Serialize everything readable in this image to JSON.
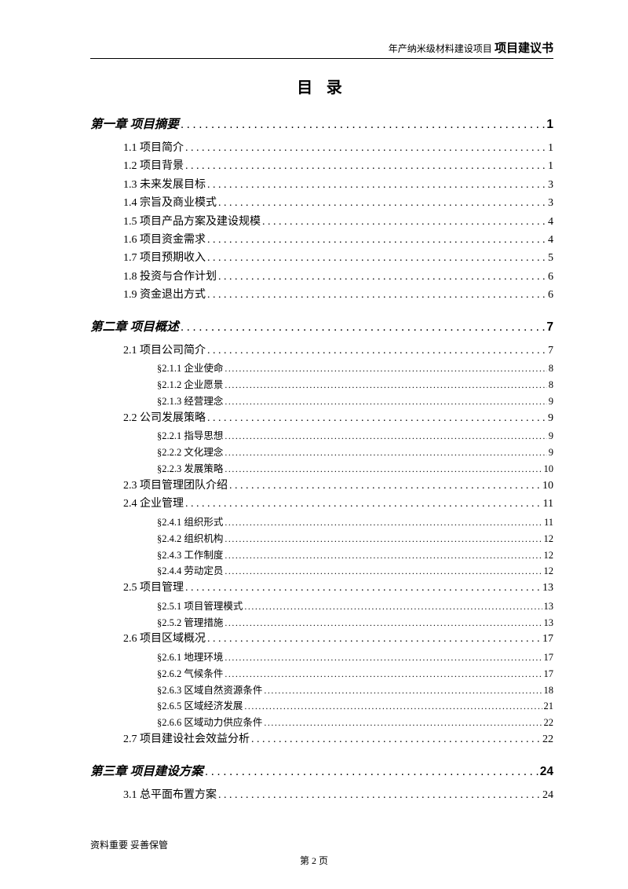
{
  "header": {
    "small": "年产纳米级材料建设项目",
    "bold": "项目建议书"
  },
  "title": "目 录",
  "entries": [
    {
      "level": 1,
      "label": "第一章 项目摘要",
      "page": "1"
    },
    {
      "level": 2,
      "label": "1.1 项目简介",
      "page": "1"
    },
    {
      "level": 2,
      "label": "1.2 项目背景",
      "page": "1"
    },
    {
      "level": 2,
      "label": "1.3 未来发展目标",
      "page": "3"
    },
    {
      "level": 2,
      "label": "1.4 宗旨及商业模式",
      "page": "3"
    },
    {
      "level": 2,
      "label": "1.5 项目产品方案及建设规模",
      "page": "4"
    },
    {
      "level": 2,
      "label": "1.6 项目资金需求",
      "page": "4"
    },
    {
      "level": 2,
      "label": "1.7 项目预期收入",
      "page": "5"
    },
    {
      "level": 2,
      "label": "1.8 投资与合作计划",
      "page": "6"
    },
    {
      "level": 2,
      "label": "1.9 资金退出方式",
      "page": "6"
    },
    {
      "level": 1,
      "label": "第二章 项目概述",
      "page": "7"
    },
    {
      "level": 2,
      "label": "2.1 项目公司简介",
      "page": "7"
    },
    {
      "level": 3,
      "label": "§2.1.1 企业使命",
      "page": "8"
    },
    {
      "level": 3,
      "label": "§2.1.2 企业愿景",
      "page": "8"
    },
    {
      "level": 3,
      "label": "§2.1.3 经营理念",
      "page": "9"
    },
    {
      "level": 2,
      "label": "2.2 公司发展策略",
      "page": "9"
    },
    {
      "level": 3,
      "label": "§2.2.1 指导思想",
      "page": "9"
    },
    {
      "level": 3,
      "label": "§2.2.2 文化理念",
      "page": "9"
    },
    {
      "level": 3,
      "label": "§2.2.3 发展策略",
      "page": "10"
    },
    {
      "level": 2,
      "label": "2.3 项目管理团队介绍",
      "page": "10"
    },
    {
      "level": 2,
      "label": "2.4 企业管理",
      "page": "11"
    },
    {
      "level": 3,
      "label": "§2.4.1 组织形式",
      "page": "11"
    },
    {
      "level": 3,
      "label": "§2.4.2 组织机构",
      "page": "12"
    },
    {
      "level": 3,
      "label": "§2.4.3 工作制度",
      "page": "12"
    },
    {
      "level": 3,
      "label": "§2.4.4 劳动定员",
      "page": "12"
    },
    {
      "level": 2,
      "label": "2.5 项目管理",
      "page": "13"
    },
    {
      "level": 3,
      "label": "§2.5.1 项目管理模式",
      "page": "13"
    },
    {
      "level": 3,
      "label": "§2.5.2 管理措施",
      "page": "13"
    },
    {
      "level": 2,
      "label": "2.6 项目区域概况",
      "page": "17"
    },
    {
      "level": 3,
      "label": "§2.6.1 地理环境",
      "page": "17"
    },
    {
      "level": 3,
      "label": "§2.6.2 气候条件",
      "page": "17"
    },
    {
      "level": 3,
      "label": "§2.6.3 区域自然资源条件",
      "page": "18"
    },
    {
      "level": 3,
      "label": "§2.6.5 区域经济发展",
      "page": "21"
    },
    {
      "level": 3,
      "label": "§2.6.6 区域动力供应条件",
      "page": "22"
    },
    {
      "level": 2,
      "label": "2.7 项目建设社会效益分析",
      "page": "22"
    },
    {
      "level": 1,
      "label": "第三章 项目建设方案",
      "page": "24"
    },
    {
      "level": 2,
      "label": "3.1 总平面布置方案",
      "page": "24"
    }
  ],
  "footer": {
    "note": "资料重要  妥善保管",
    "page": "第 2 页"
  }
}
